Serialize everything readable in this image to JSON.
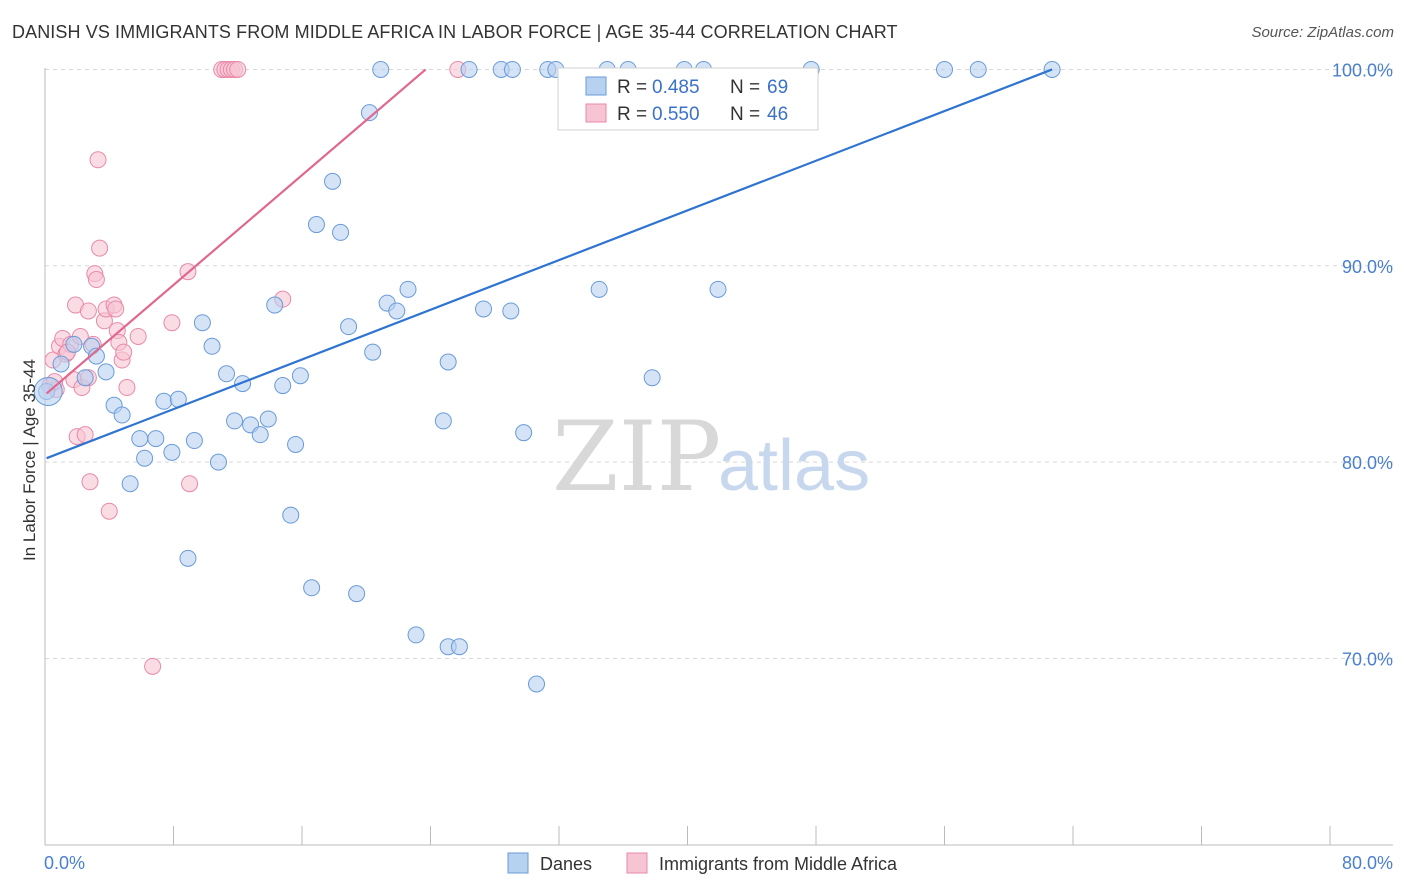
{
  "title": "DANISH VS IMMIGRANTS FROM MIDDLE AFRICA IN LABOR FORCE | AGE 35-44 CORRELATION CHART",
  "source": "Source: ZipAtlas.com",
  "watermark": {
    "zip": "ZIP",
    "atlas": "atlas"
  },
  "legend_box": {
    "rows": [
      {
        "r_label": "R = ",
        "r_value": "0.485",
        "n_label": "N = ",
        "n_value": "69"
      },
      {
        "r_label": "R = ",
        "r_value": "0.550",
        "n_label": "N = ",
        "n_value": "46"
      }
    ]
  },
  "colors": {
    "blue_fill": "#b7d1f0",
    "blue_stroke": "#6a9bd8",
    "blue_line": "#2f74d0",
    "pink_fill": "#f6c4d3",
    "pink_stroke": "#e88aa8",
    "pink_line": "#e06890",
    "grid": "#d8d8d8",
    "axis_text": "#4a7fd0"
  },
  "chart_data": {
    "type": "scatter",
    "title": "DANISH VS IMMIGRANTS FROM MIDDLE AFRICA IN LABOR FORCE | AGE 35-44 CORRELATION CHART",
    "xlabel": "",
    "ylabel": "In Labor Force | Age 35-44",
    "xlim": [
      0,
      80
    ],
    "ylim": [
      60.5,
      101.5
    ],
    "x_tick_labels": [
      "0.0%",
      "80.0%"
    ],
    "y_ticks": [
      70,
      80,
      90,
      100
    ],
    "y_tick_labels": [
      "70.0%",
      "80.0%",
      "90.0%",
      "100.0%"
    ],
    "grid": true,
    "series": [
      {
        "name": "Danes",
        "R": 0.485,
        "N": 69,
        "trend": [
          [
            0.1,
            80.2
          ],
          [
            62.7,
            100.0
          ]
        ],
        "points": [
          [
            0.1,
            83.6
          ],
          [
            1.0,
            85.0
          ],
          [
            1.8,
            86.0
          ],
          [
            2.5,
            84.3
          ],
          [
            2.9,
            85.9
          ],
          [
            3.2,
            85.4
          ],
          [
            3.8,
            84.6
          ],
          [
            4.3,
            82.9
          ],
          [
            4.8,
            82.4
          ],
          [
            5.3,
            78.9
          ],
          [
            5.9,
            81.2
          ],
          [
            6.2,
            80.2
          ],
          [
            6.9,
            81.2
          ],
          [
            7.4,
            83.1
          ],
          [
            7.9,
            80.5
          ],
          [
            8.3,
            83.2
          ],
          [
            8.9,
            75.1
          ],
          [
            9.3,
            81.1
          ],
          [
            9.8,
            87.1
          ],
          [
            10.4,
            85.9
          ],
          [
            10.8,
            80.0
          ],
          [
            11.3,
            84.5
          ],
          [
            11.8,
            82.1
          ],
          [
            12.3,
            84.0
          ],
          [
            12.8,
            81.9
          ],
          [
            13.4,
            81.4
          ],
          [
            13.9,
            82.2
          ],
          [
            14.3,
            88.0
          ],
          [
            14.8,
            83.9
          ],
          [
            15.3,
            77.3
          ],
          [
            15.6,
            80.9
          ],
          [
            15.9,
            84.4
          ],
          [
            16.6,
            73.6
          ],
          [
            16.9,
            92.1
          ],
          [
            17.9,
            94.3
          ],
          [
            18.4,
            91.7
          ],
          [
            18.9,
            86.9
          ],
          [
            19.4,
            73.3
          ],
          [
            20.2,
            97.8
          ],
          [
            20.4,
            85.6
          ],
          [
            20.9,
            100.0
          ],
          [
            21.3,
            88.1
          ],
          [
            21.9,
            87.7
          ],
          [
            22.6,
            88.8
          ],
          [
            23.1,
            71.2
          ],
          [
            24.8,
            82.1
          ],
          [
            25.1,
            85.1
          ],
          [
            25.1,
            70.6
          ],
          [
            25.8,
            70.6
          ],
          [
            26.4,
            100.0
          ],
          [
            27.3,
            87.8
          ],
          [
            28.4,
            100.0
          ],
          [
            29.0,
            87.7
          ],
          [
            29.1,
            100.0
          ],
          [
            29.8,
            81.5
          ],
          [
            30.6,
            68.7
          ],
          [
            31.3,
            100.0
          ],
          [
            31.8,
            100.0
          ],
          [
            34.5,
            88.8
          ],
          [
            35.0,
            100.0
          ],
          [
            36.3,
            100.0
          ],
          [
            37.8,
            84.3
          ],
          [
            39.8,
            100.0
          ],
          [
            41.0,
            100.0
          ],
          [
            41.9,
            88.8
          ],
          [
            47.7,
            100.0
          ],
          [
            58.1,
            100.0
          ],
          [
            62.7,
            100.0
          ],
          [
            56.0,
            100.0
          ]
        ]
      },
      {
        "name": "Immigrants from Middle Africa",
        "R": 0.55,
        "N": 46,
        "trend": [
          [
            0.1,
            83.5
          ],
          [
            23.7,
            100.0
          ]
        ],
        "points": [
          [
            0.3,
            83.9
          ],
          [
            0.5,
            85.2
          ],
          [
            0.7,
            83.7
          ],
          [
            0.9,
            85.9
          ],
          [
            1.1,
            86.3
          ],
          [
            1.3,
            85.5
          ],
          [
            1.6,
            86.0
          ],
          [
            1.8,
            84.2
          ],
          [
            1.9,
            88.0
          ],
          [
            2.0,
            81.3
          ],
          [
            2.2,
            86.4
          ],
          [
            2.3,
            83.8
          ],
          [
            2.5,
            81.4
          ],
          [
            2.7,
            84.3
          ],
          [
            2.7,
            87.7
          ],
          [
            2.8,
            79.0
          ],
          [
            3.0,
            86.0
          ],
          [
            3.1,
            89.6
          ],
          [
            3.2,
            89.3
          ],
          [
            3.3,
            95.4
          ],
          [
            3.4,
            90.9
          ],
          [
            3.7,
            87.2
          ],
          [
            3.8,
            87.8
          ],
          [
            4.0,
            77.5
          ],
          [
            4.3,
            88.0
          ],
          [
            4.4,
            87.8
          ],
          [
            4.5,
            86.7
          ],
          [
            4.6,
            86.1
          ],
          [
            4.8,
            85.2
          ],
          [
            4.9,
            85.6
          ],
          [
            5.1,
            83.8
          ],
          [
            5.8,
            86.4
          ],
          [
            6.7,
            69.6
          ],
          [
            7.9,
            87.1
          ],
          [
            8.9,
            89.7
          ],
          [
            9.0,
            78.9
          ],
          [
            11.0,
            100.0
          ],
          [
            11.2,
            100.0
          ],
          [
            11.4,
            100.0
          ],
          [
            11.6,
            100.0
          ],
          [
            11.8,
            100.0
          ],
          [
            12.0,
            100.0
          ],
          [
            14.8,
            88.3
          ],
          [
            25.7,
            100.0
          ],
          [
            0.6,
            84.1
          ],
          [
            1.4,
            85.6
          ]
        ]
      }
    ]
  },
  "bottom_legend": {
    "items": [
      "Danes",
      "Immigrants from Middle Africa"
    ]
  }
}
